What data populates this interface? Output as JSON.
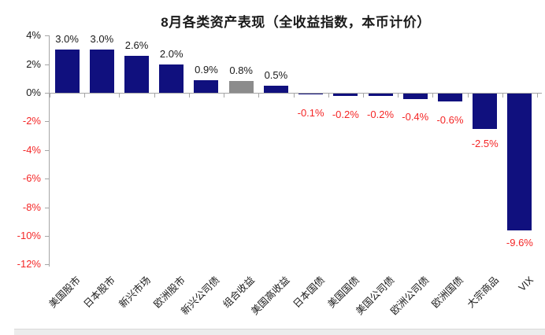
{
  "page": {
    "background": "#ffffff"
  },
  "chart_data": {
    "type": "bar",
    "title": "8月各类资产表现（全收益指数，本币计价）",
    "categories": [
      "美国股市",
      "日本股市",
      "新兴市场",
      "欧洲股市",
      "新兴公司债",
      "组合收益",
      "美国高收益",
      "日本国债",
      "美国国债",
      "美国公司债",
      "欧洲公司债",
      "欧洲国债",
      "大宗商品",
      "VIX"
    ],
    "values": [
      3.0,
      3.0,
      2.6,
      2.0,
      0.9,
      0.8,
      0.5,
      -0.1,
      -0.2,
      -0.2,
      -0.4,
      -0.6,
      -2.5,
      -9.6
    ],
    "data_labels": [
      "3.0%",
      "3.0%",
      "2.6%",
      "2.0%",
      "0.9%",
      "0.8%",
      "0.5%",
      "-0.1%",
      "-0.2%",
      "-0.2%",
      "-0.4%",
      "-0.6%",
      "-2.5%",
      "-9.6%"
    ],
    "highlight_index": 5,
    "highlighted_category": "组合收益",
    "ylim": [
      -12,
      4
    ],
    "yticks": [
      4,
      2,
      0,
      -2,
      -4,
      -6,
      -8,
      -10,
      -12
    ],
    "ytick_labels": [
      "4%",
      "2%",
      "0%",
      "-2%",
      "-4%",
      "-6%",
      "-8%",
      "-10%",
      "-12%"
    ],
    "grid": false,
    "legend": "none",
    "colors": {
      "bar": "#10107e",
      "highlight_bar": "#8c8c8c",
      "positive_value_label": "#1a1a1a",
      "negative_value_label": "#f42626",
      "axis_line": "#a6a6a6",
      "ytick_label_positive": "#1a1a1a",
      "ytick_label_negative": "#f42626",
      "title": "#1a1a1a",
      "category_label": "#1a1a1a"
    }
  }
}
